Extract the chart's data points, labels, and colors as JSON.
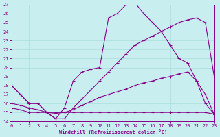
{
  "xlabel": "Windchill (Refroidissement éolien,°C)",
  "xlim": [
    0,
    23
  ],
  "ylim": [
    14,
    27
  ],
  "xticks": [
    0,
    1,
    2,
    3,
    4,
    5,
    6,
    7,
    8,
    9,
    10,
    11,
    12,
    13,
    14,
    15,
    16,
    17,
    18,
    19,
    20,
    21,
    22,
    23
  ],
  "yticks": [
    14,
    15,
    16,
    17,
    18,
    19,
    20,
    21,
    22,
    23,
    24,
    25,
    26,
    27
  ],
  "bg_color": "#c8eef0",
  "line_color": "#880088",
  "grid_color": "#aadddd",
  "line1_x": [
    0,
    1,
    2,
    3,
    4,
    5,
    6,
    7,
    8,
    9,
    10,
    11,
    12,
    13,
    14,
    15,
    16,
    17,
    18,
    19,
    20,
    21,
    22,
    23
  ],
  "line1_y": [
    18.0,
    17.0,
    16.0,
    16.0,
    15.0,
    14.3,
    14.3,
    15.5,
    16.5,
    17.5,
    18.5,
    19.5,
    20.5,
    21.5,
    22.5,
    23.0,
    23.5,
    24.0,
    24.5,
    25.0,
    25.3,
    25.5,
    25.0,
    19.0
  ],
  "line2_x": [
    0,
    1,
    2,
    3,
    4,
    5,
    6,
    7,
    8,
    9,
    10,
    11,
    12,
    13,
    14,
    15,
    16,
    17,
    18,
    19,
    20,
    21,
    22,
    23
  ],
  "line2_y": [
    18.0,
    17.0,
    16.0,
    16.0,
    15.0,
    14.3,
    15.5,
    18.5,
    19.5,
    19.8,
    20.0,
    25.5,
    26.0,
    27.0,
    27.2,
    26.0,
    25.0,
    24.0,
    22.5,
    21.0,
    20.5,
    18.5,
    16.0,
    14.8
  ],
  "line3_x": [
    0,
    1,
    2,
    3,
    4,
    5,
    6,
    7,
    8,
    9,
    10,
    11,
    12,
    13,
    14,
    15,
    16,
    17,
    18,
    19,
    20,
    21,
    22,
    23
  ],
  "line3_y": [
    16.0,
    15.8,
    15.5,
    15.3,
    15.0,
    14.9,
    15.0,
    15.3,
    15.8,
    16.2,
    16.7,
    17.0,
    17.3,
    17.6,
    18.0,
    18.3,
    18.5,
    18.8,
    19.0,
    19.3,
    19.5,
    18.5,
    17.0,
    14.8
  ],
  "line4_x": [
    0,
    1,
    2,
    3,
    4,
    5,
    6,
    7,
    8,
    9,
    10,
    11,
    12,
    13,
    14,
    15,
    16,
    17,
    18,
    19,
    20,
    21,
    22,
    23
  ],
  "line4_y": [
    15.5,
    15.3,
    15.0,
    15.0,
    15.0,
    15.0,
    15.0,
    15.0,
    15.0,
    15.0,
    15.0,
    15.0,
    15.0,
    15.0,
    15.0,
    15.0,
    15.0,
    15.0,
    15.0,
    15.0,
    15.0,
    15.0,
    15.0,
    14.8
  ]
}
